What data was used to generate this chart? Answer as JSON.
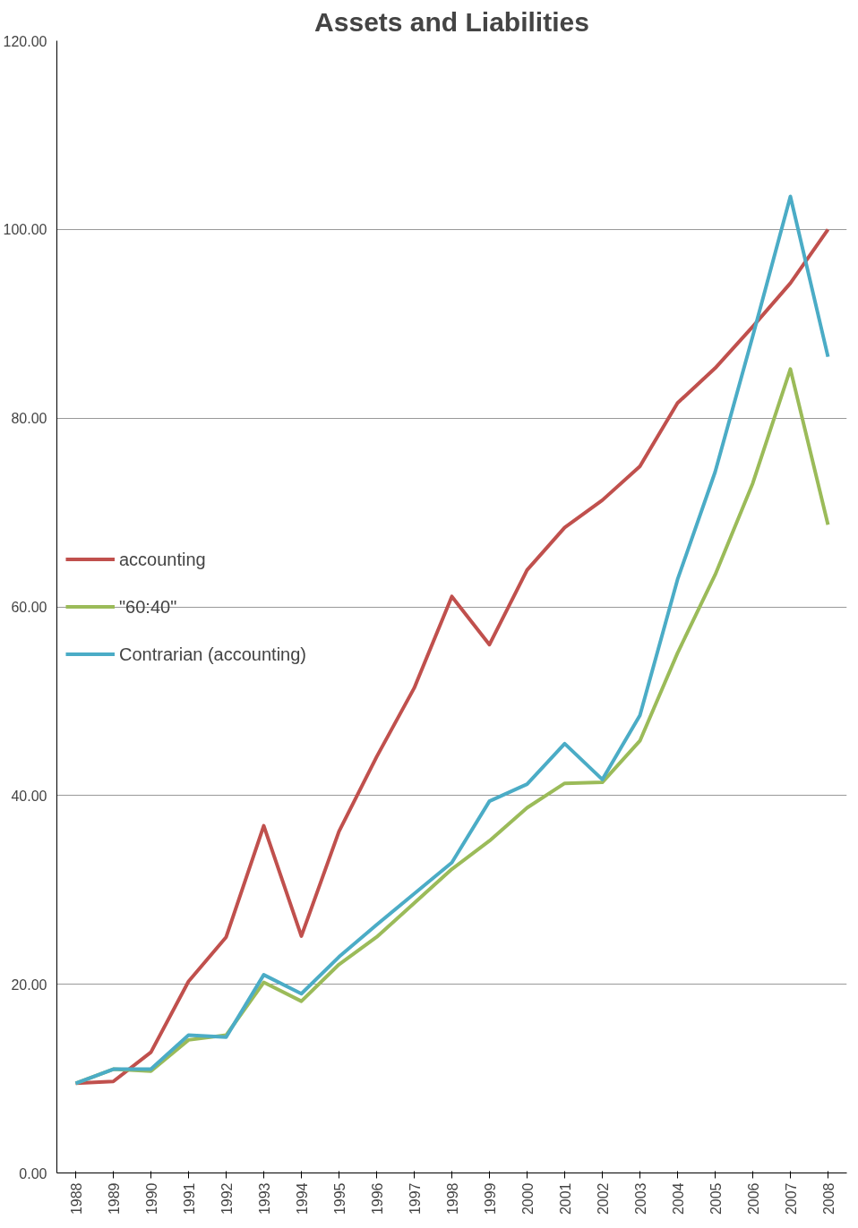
{
  "chart_data": {
    "type": "line",
    "title": "Assets and Liabilities",
    "categories": [
      "1988",
      "1989",
      "1990",
      "1991",
      "1992",
      "1993",
      "1994",
      "1995",
      "1996",
      "1997",
      "1998",
      "1999",
      "2000",
      "2001",
      "2002",
      "2003",
      "2004",
      "2005",
      "2006",
      "2007",
      "2008"
    ],
    "series": [
      {
        "name": "accounting",
        "color": "#c0504d",
        "values": [
          9.5,
          9.7,
          12.8,
          20.3,
          25.0,
          36.8,
          25.1,
          36.2,
          44.1,
          51.4,
          61.1,
          56.0,
          63.9,
          68.4,
          71.3,
          74.9,
          81.6,
          85.3,
          89.7,
          94.3,
          100.0
        ]
      },
      {
        "name": "\"60:40\"",
        "color": "#9bbb59",
        "values": [
          9.5,
          11.0,
          10.8,
          14.1,
          14.6,
          20.2,
          18.2,
          22.1,
          25.0,
          28.6,
          32.2,
          35.2,
          38.7,
          41.3,
          41.4,
          45.8,
          55.1,
          63.4,
          73.1,
          85.2,
          68.7
        ]
      },
      {
        "name": "Contrarian (accounting)",
        "color": "#4bacc6",
        "values": [
          9.5,
          11.0,
          11.0,
          14.6,
          14.4,
          21.0,
          19.0,
          22.9,
          26.3,
          29.6,
          32.9,
          39.4,
          41.2,
          45.5,
          41.7,
          48.5,
          62.9,
          74.3,
          88.7,
          103.5,
          86.5
        ]
      }
    ],
    "ylim": [
      0,
      120
    ],
    "yticks": [
      {
        "value": 0,
        "label": "0.00"
      },
      {
        "value": 20,
        "label": "20.00"
      },
      {
        "value": 40,
        "label": "40.00"
      },
      {
        "value": 60,
        "label": "60.00"
      },
      {
        "value": 80,
        "label": "80.00"
      },
      {
        "value": 100,
        "label": "100.00"
      },
      {
        "value": 120,
        "label": "120.00"
      }
    ],
    "grid": "y",
    "legend": "left",
    "marker": "none",
    "line_style": "solid"
  }
}
